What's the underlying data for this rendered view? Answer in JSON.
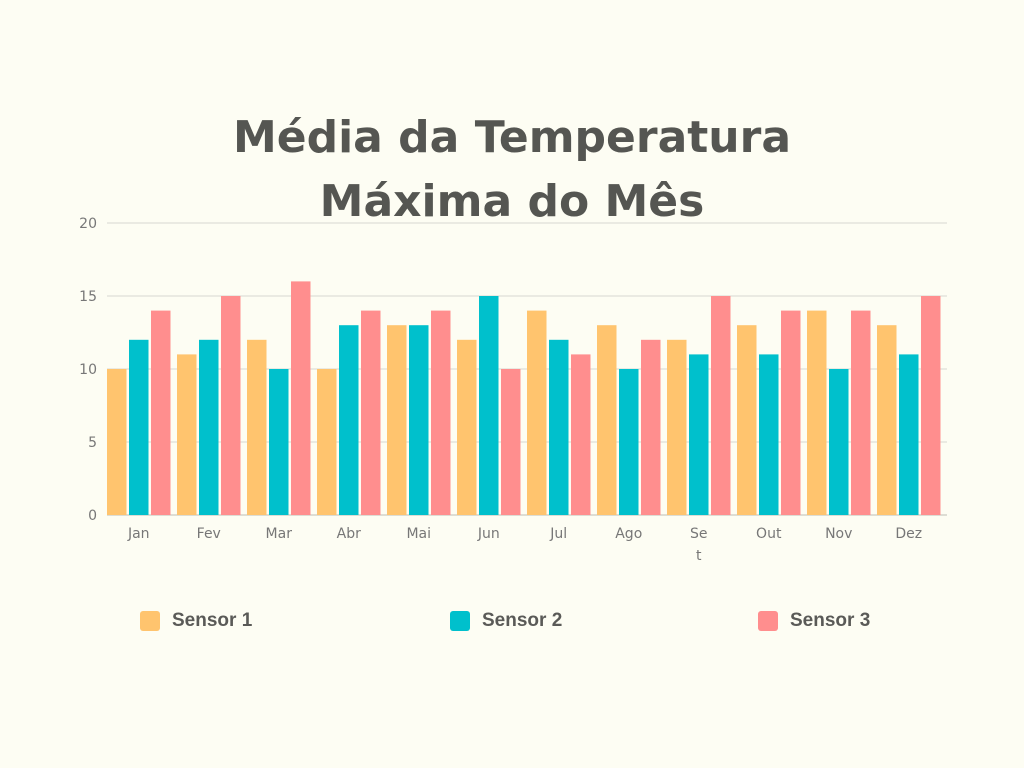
{
  "chart_data": {
    "type": "bar",
    "title_line1": "Média da Temperatura",
    "title_line2": "Máxima do Mês",
    "categories": [
      "Jan",
      "Fev",
      "Mar",
      "Abr",
      "Mai",
      "Jun",
      "Jul",
      "Ago",
      "Set",
      "Out",
      "Nov",
      "Dez"
    ],
    "category_labels": [
      [
        "Jan"
      ],
      [
        "Fev"
      ],
      [
        "Mar"
      ],
      [
        "Abr"
      ],
      [
        "Mai"
      ],
      [
        "Jun"
      ],
      [
        "Jul"
      ],
      [
        "Ago"
      ],
      [
        "Se",
        "t"
      ],
      [
        "Out"
      ],
      [
        "Nov"
      ],
      [
        "Dez"
      ]
    ],
    "series": [
      {
        "name": "Sensor 1",
        "color": "#ffc46e",
        "values": [
          10,
          11,
          12,
          10,
          13,
          12,
          14,
          13,
          12,
          13,
          14,
          13
        ]
      },
      {
        "name": "Sensor 2",
        "color": "#00c0cc",
        "values": [
          12,
          12,
          10,
          13,
          13,
          15,
          12,
          10,
          11,
          11,
          10,
          11
        ]
      },
      {
        "name": "Sensor 3",
        "color": "#ff8e8e",
        "values": [
          14,
          15,
          16,
          14,
          14,
          10,
          11,
          12,
          15,
          14,
          14,
          15
        ]
      }
    ],
    "ylim": [
      0,
      20
    ],
    "yticks": [
      0,
      5,
      10,
      15,
      20
    ],
    "grid": true,
    "legend_position": "bottom"
  }
}
